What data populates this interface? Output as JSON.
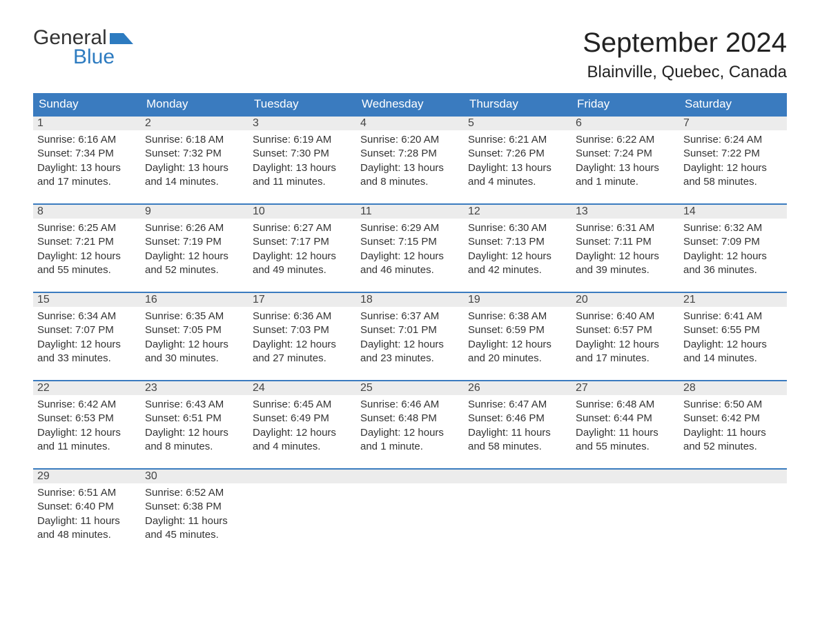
{
  "brand": {
    "word1": "General",
    "word2": "Blue",
    "logo_color": "#2d7bc0"
  },
  "title": "September 2024",
  "location": "Blainville, Quebec, Canada",
  "colors": {
    "header_bg": "#3a7bbf",
    "header_text": "#ffffff",
    "daynum_bg": "#ececec",
    "day_border": "#3a7bbf",
    "body_bg": "#ffffff",
    "text": "#222222"
  },
  "weekdays": [
    "Sunday",
    "Monday",
    "Tuesday",
    "Wednesday",
    "Thursday",
    "Friday",
    "Saturday"
  ],
  "weeks": [
    [
      {
        "n": "1",
        "sunrise": "6:16 AM",
        "sunset": "7:34 PM",
        "daylight": "13 hours and 17 minutes."
      },
      {
        "n": "2",
        "sunrise": "6:18 AM",
        "sunset": "7:32 PM",
        "daylight": "13 hours and 14 minutes."
      },
      {
        "n": "3",
        "sunrise": "6:19 AM",
        "sunset": "7:30 PM",
        "daylight": "13 hours and 11 minutes."
      },
      {
        "n": "4",
        "sunrise": "6:20 AM",
        "sunset": "7:28 PM",
        "daylight": "13 hours and 8 minutes."
      },
      {
        "n": "5",
        "sunrise": "6:21 AM",
        "sunset": "7:26 PM",
        "daylight": "13 hours and 4 minutes."
      },
      {
        "n": "6",
        "sunrise": "6:22 AM",
        "sunset": "7:24 PM",
        "daylight": "13 hours and 1 minute."
      },
      {
        "n": "7",
        "sunrise": "6:24 AM",
        "sunset": "7:22 PM",
        "daylight": "12 hours and 58 minutes."
      }
    ],
    [
      {
        "n": "8",
        "sunrise": "6:25 AM",
        "sunset": "7:21 PM",
        "daylight": "12 hours and 55 minutes."
      },
      {
        "n": "9",
        "sunrise": "6:26 AM",
        "sunset": "7:19 PM",
        "daylight": "12 hours and 52 minutes."
      },
      {
        "n": "10",
        "sunrise": "6:27 AM",
        "sunset": "7:17 PM",
        "daylight": "12 hours and 49 minutes."
      },
      {
        "n": "11",
        "sunrise": "6:29 AM",
        "sunset": "7:15 PM",
        "daylight": "12 hours and 46 minutes."
      },
      {
        "n": "12",
        "sunrise": "6:30 AM",
        "sunset": "7:13 PM",
        "daylight": "12 hours and 42 minutes."
      },
      {
        "n": "13",
        "sunrise": "6:31 AM",
        "sunset": "7:11 PM",
        "daylight": "12 hours and 39 minutes."
      },
      {
        "n": "14",
        "sunrise": "6:32 AM",
        "sunset": "7:09 PM",
        "daylight": "12 hours and 36 minutes."
      }
    ],
    [
      {
        "n": "15",
        "sunrise": "6:34 AM",
        "sunset": "7:07 PM",
        "daylight": "12 hours and 33 minutes."
      },
      {
        "n": "16",
        "sunrise": "6:35 AM",
        "sunset": "7:05 PM",
        "daylight": "12 hours and 30 minutes."
      },
      {
        "n": "17",
        "sunrise": "6:36 AM",
        "sunset": "7:03 PM",
        "daylight": "12 hours and 27 minutes."
      },
      {
        "n": "18",
        "sunrise": "6:37 AM",
        "sunset": "7:01 PM",
        "daylight": "12 hours and 23 minutes."
      },
      {
        "n": "19",
        "sunrise": "6:38 AM",
        "sunset": "6:59 PM",
        "daylight": "12 hours and 20 minutes."
      },
      {
        "n": "20",
        "sunrise": "6:40 AM",
        "sunset": "6:57 PM",
        "daylight": "12 hours and 17 minutes."
      },
      {
        "n": "21",
        "sunrise": "6:41 AM",
        "sunset": "6:55 PM",
        "daylight": "12 hours and 14 minutes."
      }
    ],
    [
      {
        "n": "22",
        "sunrise": "6:42 AM",
        "sunset": "6:53 PM",
        "daylight": "12 hours and 11 minutes."
      },
      {
        "n": "23",
        "sunrise": "6:43 AM",
        "sunset": "6:51 PM",
        "daylight": "12 hours and 8 minutes."
      },
      {
        "n": "24",
        "sunrise": "6:45 AM",
        "sunset": "6:49 PM",
        "daylight": "12 hours and 4 minutes."
      },
      {
        "n": "25",
        "sunrise": "6:46 AM",
        "sunset": "6:48 PM",
        "daylight": "12 hours and 1 minute."
      },
      {
        "n": "26",
        "sunrise": "6:47 AM",
        "sunset": "6:46 PM",
        "daylight": "11 hours and 58 minutes."
      },
      {
        "n": "27",
        "sunrise": "6:48 AM",
        "sunset": "6:44 PM",
        "daylight": "11 hours and 55 minutes."
      },
      {
        "n": "28",
        "sunrise": "6:50 AM",
        "sunset": "6:42 PM",
        "daylight": "11 hours and 52 minutes."
      }
    ],
    [
      {
        "n": "29",
        "sunrise": "6:51 AM",
        "sunset": "6:40 PM",
        "daylight": "11 hours and 48 minutes."
      },
      {
        "n": "30",
        "sunrise": "6:52 AM",
        "sunset": "6:38 PM",
        "daylight": "11 hours and 45 minutes."
      },
      null,
      null,
      null,
      null,
      null
    ]
  ],
  "labels": {
    "sunrise_prefix": "Sunrise: ",
    "sunset_prefix": "Sunset: ",
    "daylight_prefix": "Daylight: "
  }
}
